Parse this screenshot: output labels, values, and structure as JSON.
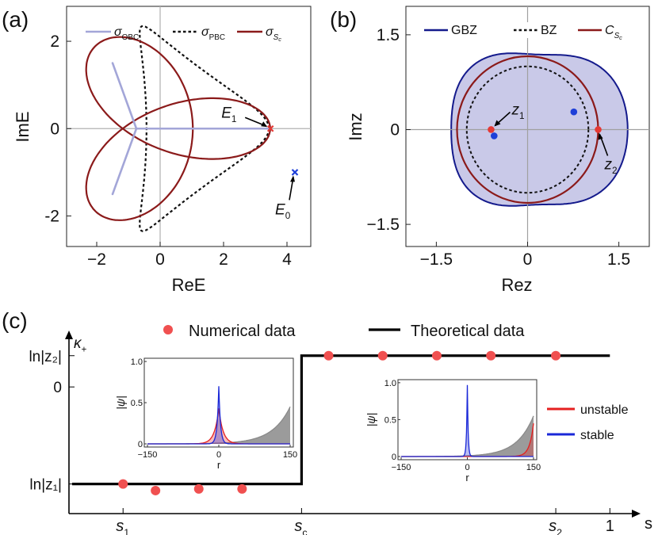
{
  "figure": {
    "panel_labels": {
      "a": "(a)",
      "b": "(b)",
      "c": "(c)"
    }
  },
  "chart_data": [
    {
      "panel": "(a)",
      "type": "line",
      "xlabel": "ReE",
      "ylabel": "ImE",
      "xlim": [
        -2.95,
        4.75
      ],
      "ylim": [
        -2.7,
        2.8
      ],
      "xticks": [
        -2,
        0,
        2,
        4
      ],
      "xtick_labels": [
        "−2",
        "0",
        "2",
        "4"
      ],
      "yticks": [
        -2,
        0,
        2
      ],
      "ytick_labels": [
        "-2",
        "0",
        "2"
      ],
      "legend": {
        "position": "top",
        "entries": [
          {
            "main": "σ",
            "sub": "OBC",
            "style": "solid",
            "color": "#a3a6d8"
          },
          {
            "main": "σ",
            "sub": "PBC",
            "style": "dashed",
            "color": "#111111"
          },
          {
            "main": "σ",
            "sub": "S",
            "subsub": "c",
            "style": "solid",
            "color": "#8b1a1a"
          }
        ]
      },
      "series": [
        {
          "name": "σ_OBC",
          "kind": "segments",
          "color": "#a3a6d8",
          "segments": [
            [
              [
                -0.75,
                0
              ],
              [
                3.45,
                0
              ]
            ],
            [
              [
                -0.75,
                0
              ],
              [
                -1.5,
                1.5
              ]
            ],
            [
              [
                -0.75,
                0
              ],
              [
                -1.5,
                -1.5
              ]
            ]
          ]
        },
        {
          "name": "σ_PBC",
          "kind": "trefoil",
          "color": "#111111",
          "center": 0.73,
          "a": 2.9,
          "b": 0.2
        },
        {
          "name": "σ_Sc",
          "kind": "cardioid",
          "color": "#8b1a1a",
          "center": 0.0,
          "a": 0.9,
          "b": 0.6
        }
      ],
      "points": [
        {
          "name": "E1",
          "label": "E",
          "sub": "1",
          "x": 3.48,
          "y": 0,
          "color": "#e53935",
          "marker": "x"
        },
        {
          "name": "E0",
          "label": "E",
          "sub": "0",
          "x": 4.25,
          "y": -1.0,
          "color": "#1e3fd8",
          "marker": "x"
        }
      ]
    },
    {
      "panel": "(b)",
      "type": "line",
      "xlabel": "Rez",
      "ylabel": "Imz",
      "xlim": [
        -2.0,
        2.0
      ],
      "ylim": [
        -1.85,
        1.95
      ],
      "xticks": [
        -1.5,
        0,
        1.5
      ],
      "xtick_labels": [
        "−1.5",
        "0",
        "1.5"
      ],
      "yticks": [
        -1.5,
        0,
        1.5
      ],
      "ytick_labels": [
        "−1.5",
        "0",
        "1.5"
      ],
      "legend": {
        "position": "top",
        "entries": [
          {
            "main": "GBZ",
            "style": "solid",
            "color": "#141a8c"
          },
          {
            "main": "BZ",
            "style": "dashed",
            "color": "#111111"
          },
          {
            "main": "C",
            "sub": "S",
            "subsub": "c",
            "style": "solid",
            "color": "#8b1a1a"
          }
        ]
      },
      "series": [
        {
          "name": "GBZ",
          "kind": "closed-curve",
          "fill": "#c9c9e8",
          "color": "#141a8c"
        },
        {
          "name": "BZ",
          "kind": "circle",
          "radius": 1.0,
          "color": "#111111"
        },
        {
          "name": "C_Sc",
          "kind": "circle",
          "radius": 1.16,
          "color": "#8b1a1a"
        }
      ],
      "points": [
        {
          "name": "z1",
          "label": "z",
          "sub": "1",
          "x": -0.6,
          "y": 0.0,
          "color": "#e53935"
        },
        {
          "name": "z2",
          "label": "z",
          "sub": "2",
          "x": 1.16,
          "y": 0.0,
          "color": "#e53935"
        },
        {
          "name": "blue-1",
          "x": -0.55,
          "y": -0.1,
          "color": "#1e3fd8"
        },
        {
          "name": "blue-2",
          "x": 0.76,
          "y": 0.28,
          "color": "#1e3fd8"
        }
      ]
    },
    {
      "panel": "(c)",
      "type": "scatter",
      "xlabel": "s",
      "ylabel": "κ",
      "ylabel_sub": "+",
      "xlim": [
        0,
        1.045
      ],
      "ylim": [
        -0.77,
        0.29
      ],
      "xticks": [
        0.1,
        0.43,
        0.9,
        1.0
      ],
      "xtick_labels": [
        {
          "main": "s",
          "sub": "1"
        },
        {
          "main": "s",
          "sub": "c"
        },
        {
          "main": "s",
          "sub": "2"
        },
        {
          "main": "1"
        }
      ],
      "yticks": [
        0.19,
        0.0,
        -0.59
      ],
      "ytick_labels": [
        "ln|z₂|",
        "0",
        "ln|z₁|"
      ],
      "legend": {
        "position": "top",
        "entries": [
          {
            "main": "Numerical data",
            "style": "marker",
            "color": "#f05050"
          },
          {
            "main": "Theoretical data",
            "style": "solid",
            "color": "#000000"
          }
        ]
      },
      "theory": {
        "color": "#000000",
        "step_at": 0.43,
        "low": -0.59,
        "high": 0.19
      },
      "numerical": {
        "color": "#f05050",
        "x": [
          0.1,
          0.16,
          0.24,
          0.32,
          0.48,
          0.58,
          0.68,
          0.78,
          0.9
        ],
        "y": [
          -0.59,
          -0.63,
          -0.62,
          -0.62,
          0.19,
          0.19,
          0.19,
          0.19,
          0.19
        ]
      },
      "insets": [
        {
          "name": "left-inset",
          "xlabel": "r",
          "ylabel": "|ψ|",
          "xlim": [
            -150,
            150
          ],
          "ylim": [
            0,
            1.0
          ],
          "xtick_labels": [
            "−150",
            "0",
            "150"
          ],
          "ytick_labels": [
            "0",
            "0.5",
            "1.0"
          ],
          "series": [
            {
              "name": "gray",
              "color": "#8a8a8a",
              "kind": "right-edge-growth",
              "peak_r": 150,
              "peak": 0.45
            },
            {
              "name": "unstable",
              "color": "#e52020",
              "kind": "center-peak",
              "peak_r": 0,
              "peak": 0.43
            },
            {
              "name": "stable",
              "color": "#1a28d8",
              "kind": "center-peak",
              "peak_r": 0,
              "peak": 0.7
            }
          ]
        },
        {
          "name": "right-inset",
          "xlabel": "r",
          "ylabel": "|ψ|",
          "xlim": [
            -150,
            150
          ],
          "ylim": [
            0,
            1.0
          ],
          "xtick_labels": [
            "−150",
            "0",
            "150"
          ],
          "ytick_labels": [
            "0",
            "0.5",
            "1.0"
          ],
          "series": [
            {
              "name": "gray",
              "color": "#8a8a8a",
              "kind": "right-edge-growth",
              "peak_r": 150,
              "peak": 0.55
            },
            {
              "name": "unstable",
              "color": "#e52020",
              "kind": "right-edge-peak",
              "peak_r": 150,
              "peak": 0.45
            },
            {
              "name": "stable",
              "color": "#1a28d8",
              "kind": "center-peak",
              "peak_r": 0,
              "peak": 0.97
            }
          ]
        }
      ],
      "inset_legend": [
        {
          "label": "unstable",
          "color": "#e52020"
        },
        {
          "label": "stable",
          "color": "#1a28d8"
        }
      ]
    }
  ]
}
